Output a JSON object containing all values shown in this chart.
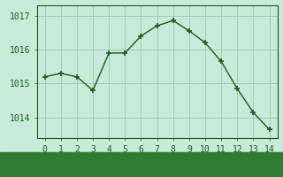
{
  "x": [
    0,
    1,
    2,
    3,
    4,
    5,
    6,
    7,
    8,
    9,
    10,
    11,
    12,
    13,
    14
  ],
  "y": [
    1015.2,
    1015.3,
    1015.2,
    1014.8,
    1015.9,
    1015.9,
    1016.4,
    1016.7,
    1016.85,
    1016.55,
    1016.2,
    1015.65,
    1014.85,
    1014.15,
    1013.65
  ],
  "line_color": "#1a5c1a",
  "marker": "+",
  "marker_size": 5,
  "bg_color": "#c8ead8",
  "grid_color": "#a0ccb8",
  "xlabel_fontsize": 8.5,
  "yticks": [
    1014,
    1015,
    1016,
    1017
  ],
  "xticks": [
    0,
    1,
    2,
    3,
    4,
    5,
    6,
    7,
    8,
    9,
    10,
    11,
    12,
    13,
    14
  ],
  "ylim": [
    1013.4,
    1017.3
  ],
  "xlim": [
    -0.5,
    14.5
  ],
  "tick_fontsize": 7,
  "label_bg_color": "#2e7d32",
  "label_text_color": "#ffffff"
}
